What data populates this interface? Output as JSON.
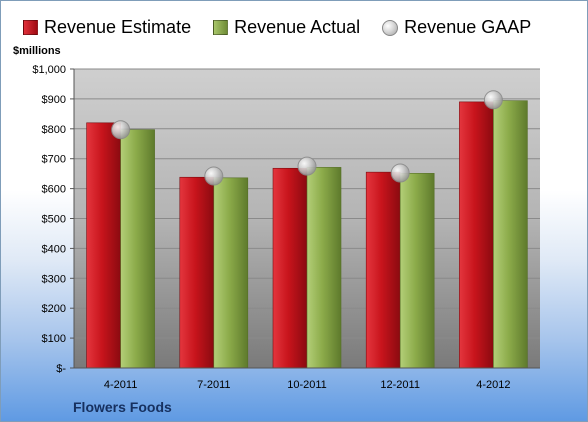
{
  "chart_data": {
    "type": "bar",
    "title": "",
    "ylabel": "$millions",
    "xlabel": "",
    "categories": [
      "4-2011",
      "7-2011",
      "10-2011",
      "12-2011",
      "4-2012"
    ],
    "series": [
      {
        "name": "Revenue Estimate",
        "type": "bar",
        "color": "#c8141c",
        "values": [
          820,
          638,
          668,
          655,
          890
        ]
      },
      {
        "name": "Revenue Actual",
        "type": "bar",
        "color": "#8cab4a",
        "values": [
          797,
          636,
          671,
          651,
          894
        ]
      },
      {
        "name": "Revenue GAAP",
        "type": "marker",
        "color": "#c0c0c0",
        "values": [
          797,
          642,
          675,
          652,
          897
        ]
      }
    ],
    "ylim": [
      0,
      1000
    ],
    "yticks": [
      0,
      100,
      200,
      300,
      400,
      500,
      600,
      700,
      800,
      900,
      1000
    ],
    "ytick_labels": [
      "$-",
      "$100",
      "$200",
      "$300",
      "$400",
      "$500",
      "$600",
      "$700",
      "$800",
      "$900",
      "$1,000"
    ],
    "grid": true,
    "legend_position": "top"
  },
  "legend": {
    "estimate": "Revenue Estimate",
    "actual": "Revenue Actual",
    "gaap": "Revenue GAAP"
  },
  "unit_label": "$millions",
  "company": "Flowers Foods"
}
